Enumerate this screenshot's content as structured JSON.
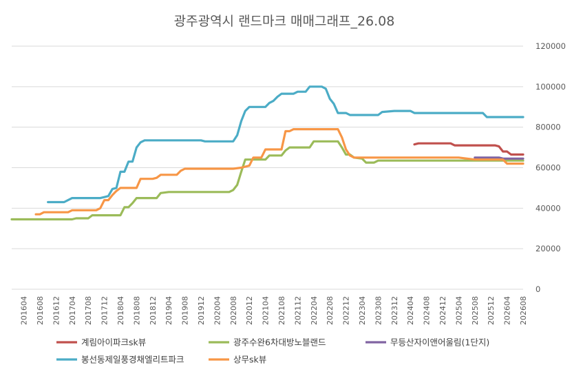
{
  "chart_data": {
    "type": "line",
    "title": "광주광역시 랜드마크 매매그래프_26.08",
    "xlabel": "",
    "ylabel": "",
    "ylim": [
      0,
      120000
    ],
    "yticks": [
      0,
      20000,
      40000,
      60000,
      80000,
      100000,
      120000
    ],
    "grid": true,
    "y_axis_position": "right",
    "legend_position": "bottom",
    "x_start": "2016-01",
    "x_end": "2026-08",
    "x_tick_labels": [
      "201604",
      "201608",
      "201612",
      "201704",
      "201708",
      "201712",
      "201804",
      "201808",
      "201812",
      "201904",
      "201908",
      "201912",
      "202004",
      "202008",
      "202012",
      "202104",
      "202108",
      "202112",
      "202204",
      "202208",
      "202212",
      "202304",
      "202308",
      "202312",
      "202404",
      "202408",
      "202412",
      "202504",
      "202508",
      "202512",
      "202604",
      "202608"
    ],
    "series": [
      {
        "name": "계림아이파크sk뷰",
        "color": "#c0504d",
        "points": [
          [
            "2024-05",
            71500
          ],
          [
            "2024-06",
            72000
          ],
          [
            "2024-07",
            72000
          ],
          [
            "2024-08",
            72000
          ],
          [
            "2024-09",
            72000
          ],
          [
            "2024-10",
            72000
          ],
          [
            "2024-11",
            72000
          ],
          [
            "2024-12",
            72000
          ],
          [
            "2025-01",
            72000
          ],
          [
            "2025-02",
            72000
          ],
          [
            "2025-03",
            71000
          ],
          [
            "2025-04",
            71000
          ],
          [
            "2025-05",
            71000
          ],
          [
            "2025-06",
            71000
          ],
          [
            "2025-07",
            71000
          ],
          [
            "2025-08",
            71000
          ],
          [
            "2025-09",
            71000
          ],
          [
            "2025-10",
            71000
          ],
          [
            "2025-11",
            71000
          ],
          [
            "2025-12",
            71000
          ],
          [
            "2026-01",
            71000
          ],
          [
            "2026-02",
            70500
          ],
          [
            "2026-03",
            68000
          ],
          [
            "2026-04",
            68000
          ],
          [
            "2026-05",
            66500
          ],
          [
            "2026-06",
            66500
          ],
          [
            "2026-07",
            66500
          ],
          [
            "2026-08",
            66500
          ]
        ]
      },
      {
        "name": "광주수완6차대방노블랜드",
        "color": "#9bbb59",
        "points": [
          [
            "2016-01",
            34500
          ],
          [
            "2016-04",
            34500
          ],
          [
            "2016-08",
            34500
          ],
          [
            "2016-12",
            34500
          ],
          [
            "2017-04",
            34500
          ],
          [
            "2017-05",
            35000
          ],
          [
            "2017-08",
            35000
          ],
          [
            "2017-09",
            36500
          ],
          [
            "2017-12",
            36500
          ],
          [
            "2018-04",
            36500
          ],
          [
            "2018-05",
            40500
          ],
          [
            "2018-06",
            40500
          ],
          [
            "2018-07",
            42500
          ],
          [
            "2018-08",
            45000
          ],
          [
            "2018-12",
            45000
          ],
          [
            "2019-01",
            45000
          ],
          [
            "2019-02",
            47500
          ],
          [
            "2019-04",
            48000
          ],
          [
            "2019-08",
            48000
          ],
          [
            "2019-12",
            48000
          ],
          [
            "2020-04",
            48000
          ],
          [
            "2020-07",
            48000
          ],
          [
            "2020-08",
            49000
          ],
          [
            "2020-09",
            51500
          ],
          [
            "2020-10",
            58000
          ],
          [
            "2020-11",
            64000
          ],
          [
            "2020-12",
            64000
          ],
          [
            "2021-04",
            64000
          ],
          [
            "2021-05",
            66000
          ],
          [
            "2021-08",
            66000
          ],
          [
            "2021-09",
            68500
          ],
          [
            "2021-10",
            70000
          ],
          [
            "2021-12",
            70000
          ],
          [
            "2022-03",
            70000
          ],
          [
            "2022-04",
            73000
          ],
          [
            "2022-08",
            73000
          ],
          [
            "2022-10",
            73000
          ],
          [
            "2022-11",
            70000
          ],
          [
            "2022-12",
            66500
          ],
          [
            "2023-01",
            66500
          ],
          [
            "2023-02",
            65000
          ],
          [
            "2023-04",
            64500
          ],
          [
            "2023-05",
            62500
          ],
          [
            "2023-07",
            62500
          ],
          [
            "2023-08",
            63500
          ],
          [
            "2023-12",
            63500
          ],
          [
            "2024-04",
            63500
          ],
          [
            "2024-08",
            63500
          ],
          [
            "2024-12",
            63500
          ],
          [
            "2025-04",
            63500
          ],
          [
            "2025-08",
            63500
          ],
          [
            "2025-12",
            63500
          ],
          [
            "2026-04",
            63500
          ],
          [
            "2026-08",
            63500
          ]
        ]
      },
      {
        "name": "무등산자이앤어울림(1단지)",
        "color": "#8064a2",
        "points": [
          [
            "2025-08",
            65000
          ],
          [
            "2025-12",
            65000
          ],
          [
            "2026-02",
            65000
          ],
          [
            "2026-03",
            64500
          ],
          [
            "2026-08",
            64500
          ]
        ]
      },
      {
        "name": "봉선동제일풍경채엘리트파크",
        "color": "#4bacc6",
        "points": [
          [
            "2016-10",
            43000
          ],
          [
            "2016-12",
            43000
          ],
          [
            "2017-02",
            43000
          ],
          [
            "2017-03",
            44000
          ],
          [
            "2017-04",
            45000
          ],
          [
            "2017-08",
            45000
          ],
          [
            "2017-11",
            45000
          ],
          [
            "2017-12",
            45500
          ],
          [
            "2018-01",
            46000
          ],
          [
            "2018-02",
            49500
          ],
          [
            "2018-03",
            50000
          ],
          [
            "2018-04",
            58000
          ],
          [
            "2018-05",
            58000
          ],
          [
            "2018-06",
            63000
          ],
          [
            "2018-07",
            63000
          ],
          [
            "2018-08",
            70000
          ],
          [
            "2018-09",
            72500
          ],
          [
            "2018-10",
            73500
          ],
          [
            "2018-12",
            73500
          ],
          [
            "2019-04",
            73500
          ],
          [
            "2019-08",
            73500
          ],
          [
            "2019-12",
            73500
          ],
          [
            "2020-01",
            73000
          ],
          [
            "2020-04",
            73000
          ],
          [
            "2020-08",
            73000
          ],
          [
            "2020-09",
            76000
          ],
          [
            "2020-10",
            83000
          ],
          [
            "2020-11",
            88000
          ],
          [
            "2020-12",
            90000
          ],
          [
            "2021-04",
            90000
          ],
          [
            "2021-05",
            92000
          ],
          [
            "2021-06",
            93000
          ],
          [
            "2021-07",
            95000
          ],
          [
            "2021-08",
            96500
          ],
          [
            "2021-09",
            96500
          ],
          [
            "2021-11",
            96500
          ],
          [
            "2021-12",
            97500
          ],
          [
            "2022-02",
            97500
          ],
          [
            "2022-03",
            100000
          ],
          [
            "2022-05",
            100000
          ],
          [
            "2022-06",
            100000
          ],
          [
            "2022-07",
            99000
          ],
          [
            "2022-08",
            94000
          ],
          [
            "2022-09",
            91500
          ],
          [
            "2022-10",
            87000
          ],
          [
            "2022-12",
            87000
          ],
          [
            "2023-01",
            86000
          ],
          [
            "2023-04",
            86000
          ],
          [
            "2023-08",
            86000
          ],
          [
            "2023-09",
            87500
          ],
          [
            "2023-12",
            88000
          ],
          [
            "2024-04",
            88000
          ],
          [
            "2024-05",
            87000
          ],
          [
            "2024-08",
            87000
          ],
          [
            "2024-12",
            87000
          ],
          [
            "2025-04",
            87000
          ],
          [
            "2025-08",
            87000
          ],
          [
            "2025-10",
            87000
          ],
          [
            "2025-11",
            85000
          ],
          [
            "2025-12",
            85000
          ],
          [
            "2026-04",
            85000
          ],
          [
            "2026-08",
            85000
          ]
        ]
      },
      {
        "name": "상무sk뷰",
        "color": "#f79646",
        "points": [
          [
            "2016-07",
            37000
          ],
          [
            "2016-08",
            37000
          ],
          [
            "2016-09",
            38000
          ],
          [
            "2016-12",
            38000
          ],
          [
            "2017-03",
            38000
          ],
          [
            "2017-04",
            39000
          ],
          [
            "2017-08",
            39000
          ],
          [
            "2017-10",
            39000
          ],
          [
            "2017-11",
            40000
          ],
          [
            "2017-12",
            44000
          ],
          [
            "2018-01",
            44000
          ],
          [
            "2018-02",
            46500
          ],
          [
            "2018-03",
            48500
          ],
          [
            "2018-04",
            50000
          ],
          [
            "2018-08",
            50000
          ],
          [
            "2018-09",
            54500
          ],
          [
            "2018-12",
            54500
          ],
          [
            "2019-01",
            55000
          ],
          [
            "2019-02",
            56500
          ],
          [
            "2019-04",
            56500
          ],
          [
            "2019-06",
            56500
          ],
          [
            "2019-07",
            58500
          ],
          [
            "2019-08",
            59500
          ],
          [
            "2019-12",
            59500
          ],
          [
            "2020-04",
            59500
          ],
          [
            "2020-08",
            59500
          ],
          [
            "2020-10",
            60000
          ],
          [
            "2020-11",
            60500
          ],
          [
            "2020-12",
            61000
          ],
          [
            "2021-01",
            65000
          ],
          [
            "2021-03",
            65000
          ],
          [
            "2021-04",
            69000
          ],
          [
            "2021-07",
            69000
          ],
          [
            "2021-08",
            69000
          ],
          [
            "2021-09",
            78000
          ],
          [
            "2021-10",
            78000
          ],
          [
            "2021-11",
            79000
          ],
          [
            "2021-12",
            79000
          ],
          [
            "2022-04",
            79000
          ],
          [
            "2022-08",
            79000
          ],
          [
            "2022-10",
            79000
          ],
          [
            "2022-11",
            75000
          ],
          [
            "2022-12",
            69000
          ],
          [
            "2023-01",
            66000
          ],
          [
            "2023-02",
            65000
          ],
          [
            "2023-04",
            65000
          ],
          [
            "2023-08",
            65000
          ],
          [
            "2023-12",
            65000
          ],
          [
            "2024-04",
            65000
          ],
          [
            "2024-08",
            65000
          ],
          [
            "2024-12",
            65000
          ],
          [
            "2025-04",
            65000
          ],
          [
            "2025-08",
            64000
          ],
          [
            "2025-12",
            64000
          ],
          [
            "2026-03",
            64000
          ],
          [
            "2026-04",
            62000
          ],
          [
            "2026-08",
            62000
          ]
        ]
      }
    ]
  }
}
